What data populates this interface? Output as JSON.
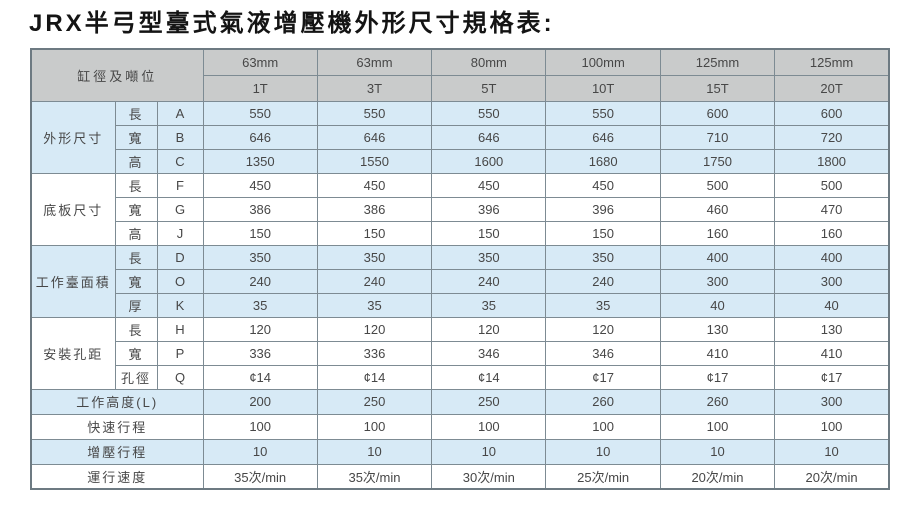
{
  "title": "JRX半弓型臺式氣液增壓機外形尺寸規格表:",
  "table": {
    "corner_label": "缸徑及噸位",
    "columns": [
      {
        "diameter": "63mm",
        "tonnage": "1T"
      },
      {
        "diameter": "63mm",
        "tonnage": "3T"
      },
      {
        "diameter": "80mm",
        "tonnage": "5T"
      },
      {
        "diameter": "100mm",
        "tonnage": "10T"
      },
      {
        "diameter": "125mm",
        "tonnage": "15T"
      },
      {
        "diameter": "125mm",
        "tonnage": "20T"
      }
    ],
    "groups": [
      {
        "label": "外形尺寸",
        "shade": "blue",
        "rows": [
          {
            "dim": "長",
            "code": "A",
            "values": [
              "550",
              "550",
              "550",
              "550",
              "600",
              "600"
            ]
          },
          {
            "dim": "寬",
            "code": "B",
            "values": [
              "646",
              "646",
              "646",
              "646",
              "710",
              "720"
            ]
          },
          {
            "dim": "高",
            "code": "C",
            "values": [
              "1350",
              "1550",
              "1600",
              "1680",
              "1750",
              "1800"
            ]
          }
        ]
      },
      {
        "label": "底板尺寸",
        "shade": "white",
        "rows": [
          {
            "dim": "長",
            "code": "F",
            "values": [
              "450",
              "450",
              "450",
              "450",
              "500",
              "500"
            ]
          },
          {
            "dim": "寬",
            "code": "G",
            "values": [
              "386",
              "386",
              "396",
              "396",
              "460",
              "470"
            ]
          },
          {
            "dim": "高",
            "code": "J",
            "values": [
              "150",
              "150",
              "150",
              "150",
              "160",
              "160"
            ]
          }
        ]
      },
      {
        "label": "工作臺面積",
        "shade": "blue",
        "rows": [
          {
            "dim": "長",
            "code": "D",
            "values": [
              "350",
              "350",
              "350",
              "350",
              "400",
              "400"
            ]
          },
          {
            "dim": "寬",
            "code": "O",
            "values": [
              "240",
              "240",
              "240",
              "240",
              "300",
              "300"
            ]
          },
          {
            "dim": "厚",
            "code": "K",
            "values": [
              "35",
              "35",
              "35",
              "35",
              "40",
              "40"
            ]
          }
        ]
      },
      {
        "label": "安裝孔距",
        "shade": "white",
        "rows": [
          {
            "dim": "長",
            "code": "H",
            "values": [
              "120",
              "120",
              "120",
              "120",
              "130",
              "130"
            ]
          },
          {
            "dim": "寬",
            "code": "P",
            "values": [
              "336",
              "336",
              "346",
              "346",
              "410",
              "410"
            ]
          },
          {
            "dim": "孔徑",
            "code": "Q",
            "values": [
              "¢14",
              "¢14",
              "¢14",
              "¢17",
              "¢17",
              "¢17"
            ]
          }
        ]
      }
    ],
    "summary_rows": [
      {
        "label": "工作高度(L)",
        "shade": "blue",
        "values": [
          "200",
          "250",
          "250",
          "260",
          "260",
          "300"
        ]
      },
      {
        "label": "快速行程",
        "shade": "white",
        "values": [
          "100",
          "100",
          "100",
          "100",
          "100",
          "100"
        ]
      },
      {
        "label": "增壓行程",
        "shade": "blue",
        "values": [
          "10",
          "10",
          "10",
          "10",
          "10",
          "10"
        ]
      },
      {
        "label": "運行速度",
        "shade": "white",
        "values": [
          "35次/min",
          "35次/min",
          "30次/min",
          "25次/min",
          "20次/min",
          "20次/min"
        ]
      }
    ],
    "colors": {
      "header_bg": "#c9cbcb",
      "blue_bg": "#d7eaf6",
      "white_bg": "#ffffff",
      "border_inner": "#7d8b93",
      "border_outer": "#6d7a82",
      "text": "#474747"
    }
  }
}
